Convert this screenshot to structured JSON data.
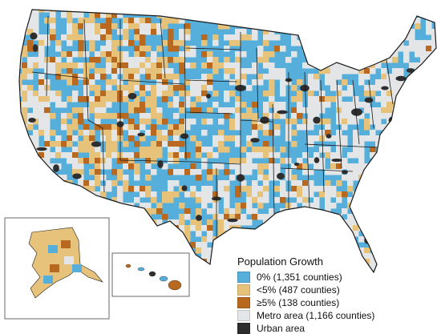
{
  "map": {
    "subject": "US population growth by county",
    "colors": {
      "growth_0": "#56aedb",
      "growth_lt5": "#e6c27a",
      "growth_ge5": "#b8691f",
      "metro": "#e3e5e7",
      "urban": "#2e2e2e",
      "border": "#1a1a1a"
    }
  },
  "legend": {
    "title": "Population Growth",
    "items": [
      {
        "label": "0% (1,351 counties)",
        "color": "#56aedb"
      },
      {
        "label": "<5% (487 counties)",
        "color": "#e6c27a"
      },
      {
        "label": "≥5% (138 counties)",
        "color": "#b8691f"
      },
      {
        "label": "Metro area (1,166 counties)",
        "color": "#e3e5e7"
      },
      {
        "label": "Urban area",
        "color": "#2e2e2e"
      }
    ]
  }
}
